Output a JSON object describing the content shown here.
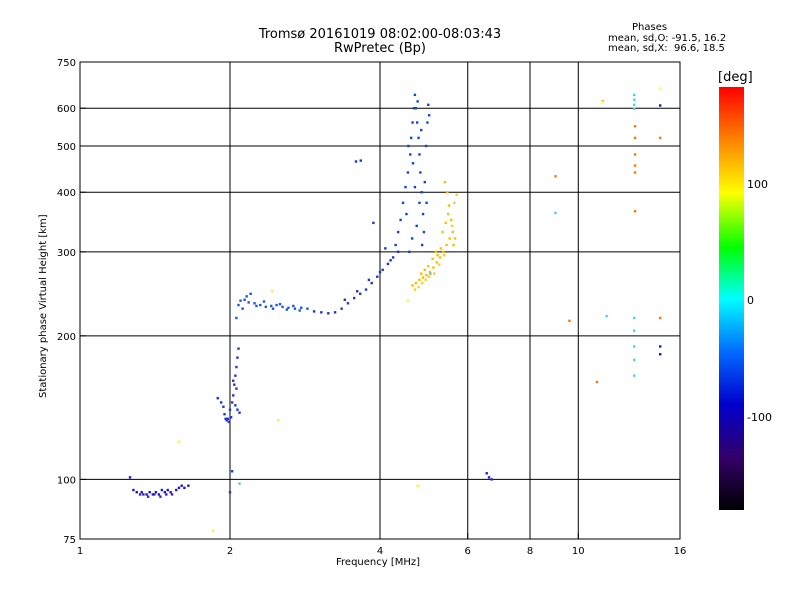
{
  "header": {
    "title_line1": "Tromsø 20161019 08:02:00-08:03:43",
    "title_line2": "RwPretec (Bp)"
  },
  "stats": {
    "heading": "Phases",
    "line_o": "mean, sd,O: -91.5, 16.2",
    "line_x": "mean, sd,X:  96.6, 18.5"
  },
  "colorbar": {
    "title": "[deg]",
    "ticks": [
      "100",
      "0",
      "-100"
    ],
    "colors": [
      "#ff0000",
      "#ff8800",
      "#ffff00",
      "#00ff00",
      "#00ffff",
      "#0066ff",
      "#0000cc",
      "#330066",
      "#000000"
    ]
  },
  "chart_data": {
    "type": "scatter",
    "title": "Tromsø 20161019 08:02:00-08:03:43",
    "subtitle": "RwPretec (Bp)",
    "xlabel": "Frequency [MHz]",
    "ylabel": "Stationary phase Virtual Height [km]",
    "x_scale": "log",
    "y_scale": "log",
    "xlim": [
      1,
      16
    ],
    "ylim": [
      75,
      750
    ],
    "x_ticks": [
      {
        "value": 1,
        "label": "1"
      },
      {
        "value": 2,
        "label": "2"
      },
      {
        "value": 4,
        "label": "4"
      },
      {
        "value": 6,
        "label": "6"
      },
      {
        "value": 8,
        "label": "8"
      },
      {
        "value": 10,
        "label": "10"
      },
      {
        "value": 16,
        "label": "16"
      }
    ],
    "y_ticks": [
      {
        "value": 75,
        "label": "75"
      },
      {
        "value": 100,
        "label": "100"
      },
      {
        "value": 200,
        "label": "200"
      },
      {
        "value": 300,
        "label": "300"
      },
      {
        "value": 400,
        "label": "400"
      },
      {
        "value": 500,
        "label": "500"
      },
      {
        "value": 600,
        "label": "600"
      },
      {
        "value": 750,
        "label": "750"
      }
    ],
    "grid_x": [
      2,
      4,
      6,
      8,
      10
    ],
    "grid_y": [
      100,
      200,
      300,
      400,
      500,
      600
    ],
    "colorbar_range": [
      -180,
      180
    ],
    "series": [
      {
        "color": "#1a1acc",
        "points": [
          [
            1.26,
            101
          ],
          [
            1.28,
            95
          ],
          [
            1.3,
            94
          ],
          [
            1.33,
            94
          ],
          [
            1.36,
            93
          ],
          [
            1.4,
            93
          ],
          [
            1.44,
            93
          ],
          [
            1.48,
            94
          ],
          [
            1.52,
            94
          ],
          [
            1.56,
            95
          ],
          [
            1.58,
            96
          ],
          [
            1.6,
            97
          ],
          [
            1.62,
            96
          ],
          [
            1.65,
            97
          ],
          [
            1.38,
            94
          ],
          [
            1.42,
            94
          ],
          [
            1.46,
            95
          ],
          [
            1.5,
            95
          ]
        ]
      },
      {
        "color": "#4b1ab0",
        "points": [
          [
            1.32,
            93
          ],
          [
            1.34,
            93
          ],
          [
            1.37,
            92
          ],
          [
            1.41,
            93
          ],
          [
            1.45,
            92
          ],
          [
            1.49,
            93
          ],
          [
            1.53,
            93
          ]
        ]
      },
      {
        "color": "#2233dd",
        "points": [
          [
            1.89,
            148
          ],
          [
            1.92,
            145
          ],
          [
            1.94,
            142
          ],
          [
            1.95,
            137
          ],
          [
            1.96,
            134
          ],
          [
            1.97,
            133
          ],
          [
            1.98,
            134
          ],
          [
            2.0,
            140
          ],
          [
            2.02,
            145
          ],
          [
            2.03,
            150
          ],
          [
            2.04,
            158
          ],
          [
            2.05,
            165
          ],
          [
            2.06,
            172
          ],
          [
            2.07,
            180
          ],
          [
            2.08,
            188
          ],
          [
            2.05,
            143
          ],
          [
            2.07,
            140
          ],
          [
            2.09,
            138
          ],
          [
            2.01,
            135
          ],
          [
            1.99,
            132
          ],
          [
            2.03,
            161
          ],
          [
            2.06,
            155
          ],
          [
            2.0,
            94
          ],
          [
            2.02,
            104
          ]
        ]
      },
      {
        "color": "#1a55ee",
        "points": [
          [
            2.06,
            218
          ],
          [
            2.08,
            232
          ],
          [
            2.1,
            237
          ],
          [
            2.14,
            238
          ],
          [
            2.18,
            235
          ],
          [
            2.24,
            234
          ],
          [
            2.3,
            232
          ],
          [
            2.36,
            230
          ],
          [
            2.42,
            231
          ],
          [
            2.48,
            232
          ],
          [
            2.55,
            230
          ],
          [
            2.62,
            229
          ],
          [
            2.7,
            228
          ],
          [
            2.78,
            229
          ],
          [
            2.86,
            228
          ],
          [
            2.12,
            228
          ],
          [
            2.16,
            242
          ],
          [
            2.2,
            245
          ],
          [
            2.26,
            231
          ],
          [
            2.34,
            236
          ],
          [
            2.44,
            228
          ],
          [
            2.52,
            233
          ],
          [
            2.6,
            227
          ],
          [
            2.68,
            231
          ],
          [
            2.76,
            226
          ]
        ]
      },
      {
        "color": "#2233cc",
        "points": [
          [
            2.95,
            225
          ],
          [
            3.05,
            224
          ],
          [
            3.15,
            223
          ],
          [
            3.25,
            224
          ],
          [
            3.35,
            228
          ],
          [
            3.45,
            234
          ],
          [
            3.55,
            240
          ],
          [
            3.65,
            245
          ],
          [
            3.75,
            250
          ],
          [
            3.85,
            258
          ],
          [
            3.95,
            266
          ],
          [
            4.05,
            275
          ],
          [
            4.15,
            283
          ],
          [
            4.25,
            292
          ],
          [
            4.35,
            300
          ],
          [
            3.4,
            238
          ],
          [
            3.6,
            248
          ],
          [
            3.8,
            262
          ],
          [
            4.0,
            272
          ],
          [
            4.2,
            288
          ],
          [
            3.58,
            464
          ],
          [
            3.66,
            466
          ],
          [
            3.88,
            345
          ],
          [
            4.1,
            305
          ]
        ]
      },
      {
        "color": "#1144dd",
        "points": [
          [
            4.3,
            310
          ],
          [
            4.35,
            330
          ],
          [
            4.4,
            350
          ],
          [
            4.45,
            380
          ],
          [
            4.5,
            410
          ],
          [
            4.55,
            440
          ],
          [
            4.6,
            480
          ],
          [
            4.62,
            520
          ],
          [
            4.65,
            560
          ],
          [
            4.68,
            600
          ],
          [
            4.7,
            640
          ],
          [
            4.72,
            600
          ],
          [
            4.75,
            560
          ],
          [
            4.78,
            520
          ],
          [
            4.8,
            480
          ],
          [
            4.82,
            440
          ],
          [
            4.85,
            400
          ],
          [
            4.88,
            360
          ],
          [
            4.9,
            330
          ],
          [
            4.92,
            420
          ],
          [
            4.95,
            500
          ],
          [
            4.98,
            560
          ],
          [
            5.0,
            610
          ],
          [
            5.02,
            580
          ],
          [
            4.58,
            300
          ],
          [
            4.64,
            320
          ],
          [
            4.74,
            340
          ],
          [
            4.86,
            310
          ],
          [
            4.96,
            380
          ],
          [
            4.52,
            360
          ],
          [
            4.66,
            460
          ],
          [
            4.76,
            620
          ],
          [
            4.84,
            540
          ],
          [
            4.56,
            500
          ],
          [
            4.7,
            410
          ],
          [
            4.8,
            380
          ]
        ]
      },
      {
        "color": "#ffbb00",
        "points": [
          [
            4.65,
            255
          ],
          [
            4.72,
            258
          ],
          [
            4.8,
            262
          ],
          [
            4.88,
            265
          ],
          [
            4.96,
            268
          ],
          [
            5.04,
            272
          ],
          [
            5.12,
            278
          ],
          [
            5.2,
            285
          ],
          [
            5.28,
            292
          ],
          [
            5.36,
            300
          ],
          [
            5.44,
            310
          ],
          [
            5.52,
            320
          ],
          [
            5.6,
            330
          ],
          [
            5.56,
            350
          ],
          [
            5.5,
            375
          ],
          [
            5.46,
            400
          ],
          [
            5.4,
            420
          ],
          [
            5.62,
            310
          ],
          [
            5.66,
            320
          ],
          [
            5.3,
            305
          ],
          [
            5.22,
            295
          ],
          [
            5.0,
            280
          ],
          [
            4.92,
            275
          ],
          [
            4.84,
            270
          ],
          [
            5.1,
            290
          ],
          [
            5.18,
            300
          ],
          [
            5.34,
            330
          ],
          [
            5.42,
            345
          ],
          [
            5.48,
            360
          ]
        ]
      },
      {
        "color": "#ffcc22",
        "points": [
          [
            4.7,
            250
          ],
          [
            4.78,
            253
          ],
          [
            4.86,
            258
          ],
          [
            4.94,
            262
          ],
          [
            5.02,
            266
          ],
          [
            5.14,
            270
          ],
          [
            5.26,
            282
          ],
          [
            5.38,
            295
          ],
          [
            5.58,
            340
          ],
          [
            5.64,
            380
          ],
          [
            5.7,
            395
          ]
        ]
      },
      {
        "color": "#ffee44",
        "points": [
          [
            1.58,
            120
          ],
          [
            1.85,
            78
          ],
          [
            2.43,
            248
          ],
          [
            2.5,
            133
          ],
          [
            4.55,
            237
          ],
          [
            4.76,
            97
          ]
        ]
      },
      {
        "color": "#2222cc",
        "points": [
          [
            6.55,
            103
          ],
          [
            6.62,
            101
          ],
          [
            6.7,
            100
          ]
        ]
      },
      {
        "color": "#66bbee",
        "points": [
          [
            2.09,
            98
          ],
          [
            5.05,
            270
          ],
          [
            9.0,
            362
          ]
        ]
      },
      {
        "color": "#ff7700",
        "points": [
          [
            9.0,
            432
          ],
          [
            9.6,
            215
          ],
          [
            10.9,
            160
          ],
          [
            11.2,
            620
          ],
          [
            13.0,
            440
          ],
          [
            13.0,
            455
          ],
          [
            13.0,
            480
          ],
          [
            13.0,
            520
          ],
          [
            13.0,
            550
          ],
          [
            13.0,
            365
          ],
          [
            14.6,
            520
          ],
          [
            14.6,
            218
          ]
        ]
      },
      {
        "color": "#33ddee",
        "points": [
          [
            12.95,
            640
          ],
          [
            12.95,
            625
          ],
          [
            12.95,
            610
          ],
          [
            12.95,
            598
          ],
          [
            12.95,
            218
          ],
          [
            12.95,
            205
          ],
          [
            12.95,
            190
          ],
          [
            12.95,
            178
          ],
          [
            12.95,
            165
          ],
          [
            11.4,
            220
          ]
        ]
      },
      {
        "color": "#ffff33",
        "points": [
          [
            14.6,
            660
          ],
          [
            11.2,
            618
          ]
        ]
      },
      {
        "color": "#1122aa",
        "points": [
          [
            14.6,
            608
          ],
          [
            14.6,
            190
          ],
          [
            14.6,
            183
          ]
        ]
      }
    ]
  }
}
